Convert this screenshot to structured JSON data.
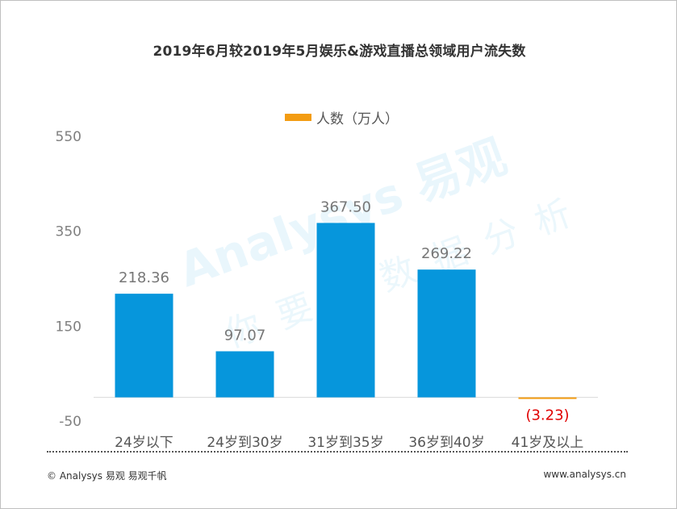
{
  "title": "2019年6月较2019年5月娱乐&游戏直播总领域用户流失数",
  "legend_label": "人数（万人）",
  "colors": {
    "bar": "#0696dc",
    "negative_bar": "#f39c12",
    "negative_label": "#e00000",
    "axis_text": "#7f7f7f",
    "value_text": "#777777",
    "category_text": "#555555"
  },
  "watermark": {
    "brand": "Analysys 易观",
    "slogan": "你要的数据分析"
  },
  "footer": {
    "copyright": "© Analysys 易观 易观千帆",
    "site": "www.analysys.cn"
  },
  "chart_data": {
    "type": "bar",
    "title": "2019年6月较2019年5月娱乐&游戏直播总领域用户流失数",
    "categories": [
      "24岁以下",
      "24岁到30岁",
      "31岁到35岁",
      "36岁到40岁",
      "41岁及以上"
    ],
    "series": [
      {
        "name": "人数（万人）",
        "values": [
          218.36,
          97.07,
          367.5,
          269.22,
          -3.23
        ]
      }
    ],
    "value_labels": [
      "218.36",
      "97.07",
      "367.50",
      "269.22",
      "(3.23)"
    ],
    "ylim": [
      -50,
      550
    ],
    "yticks": [
      -50,
      150,
      350,
      550
    ],
    "ytick_labels": [
      "-50",
      "150",
      "350",
      "550"
    ],
    "grid": false,
    "legend_position": "top-center"
  }
}
